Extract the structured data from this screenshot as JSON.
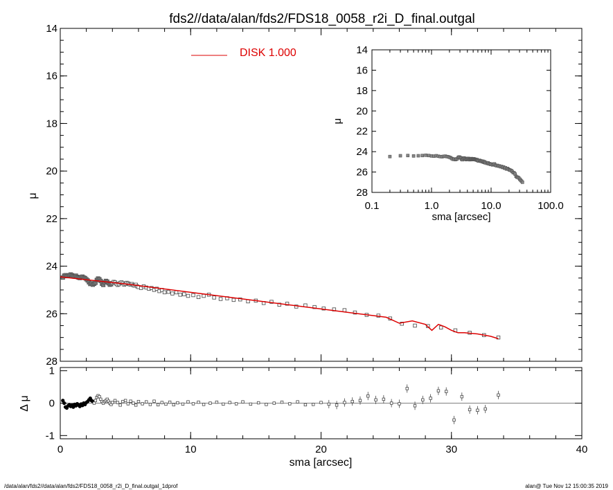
{
  "title": "fds2//data/alan/fds2/FDS18_0058_r2i_D_final.outgal",
  "footer_left": "/data/alan/fds2//data/alan/fds2/FDS18_0058_r2i_D_final.outgal_1dprof",
  "footer_right": "alan@  Tue Nov 12 15:00:35 2019",
  "legend": {
    "label": "DISK  1.000",
    "color": "#dd0000"
  },
  "main_panel": {
    "ylabel": "μ",
    "xlim": [
      0,
      40
    ],
    "ylim": [
      28,
      14
    ],
    "xticks": [
      0,
      10,
      20,
      30,
      40
    ],
    "yticks": [
      14,
      16,
      18,
      20,
      22,
      24,
      26,
      28
    ]
  },
  "residual_panel": {
    "xlabel": "sma [arcsec]",
    "ylabel": "Δ μ",
    "ylim": [
      -1.1,
      1.1
    ],
    "yticks": [
      -1,
      0,
      1
    ]
  },
  "inset_panel": {
    "xlabel": "sma [arcsec]",
    "ylabel": "μ",
    "xscale": "log",
    "xlim": [
      0.1,
      100
    ],
    "ylim": [
      28,
      14
    ],
    "xtick_values": [
      0.1,
      1,
      10,
      100
    ],
    "xtick_labels": [
      "0.1",
      "1.0",
      "10.0",
      "100.0"
    ],
    "yticks": [
      14,
      16,
      18,
      20,
      22,
      24,
      26,
      28
    ]
  },
  "chart_data": {
    "type": "scatter",
    "xlabel": "sma [arcsec]",
    "ylabel": "μ",
    "observed": {
      "x": [
        0.2,
        0.3,
        0.4,
        0.5,
        0.6,
        0.7,
        0.8,
        0.9,
        1.0,
        1.1,
        1.2,
        1.3,
        1.4,
        1.5,
        1.6,
        1.7,
        1.8,
        1.9,
        2.0,
        2.1,
        2.2,
        2.3,
        2.4,
        2.5,
        2.6,
        2.7,
        2.8,
        2.9,
        3.0,
        3.1,
        3.2,
        3.3,
        3.4,
        3.5,
        3.6,
        3.7,
        3.8,
        3.9,
        4.0,
        4.1,
        4.2,
        4.3,
        4.4,
        4.5,
        4.6,
        4.7,
        4.8,
        4.9,
        5.0,
        5.1,
        5.2,
        5.3,
        5.4,
        5.5,
        5.6,
        5.7,
        5.8,
        5.9,
        6.0,
        6.2,
        6.4,
        6.6,
        6.8,
        7.0,
        7.2,
        7.4,
        7.6,
        7.8,
        8.0,
        8.3,
        8.6,
        8.9,
        9.2,
        9.5,
        9.8,
        10.2,
        10.6,
        11.0,
        11.4,
        11.8,
        12.3,
        12.8,
        13.3,
        13.8,
        14.4,
        15.0,
        15.6,
        16.2,
        16.8,
        17.4,
        18.1,
        18.8,
        19.5,
        20.2,
        21.0,
        21.8,
        22.6,
        23.5,
        24.4,
        25.3,
        26.2,
        27.2,
        28.2,
        29.2,
        30.3,
        31.4,
        32.5,
        33.6
      ],
      "mu": [
        24.48,
        24.4,
        24.38,
        24.42,
        24.4,
        24.38,
        24.35,
        24.38,
        24.42,
        24.44,
        24.4,
        24.45,
        24.48,
        24.5,
        24.46,
        24.44,
        24.48,
        24.5,
        24.55,
        24.6,
        24.68,
        24.75,
        24.72,
        24.78,
        24.74,
        24.7,
        24.58,
        24.52,
        24.55,
        24.62,
        24.74,
        24.79,
        24.68,
        24.62,
        24.65,
        24.72,
        24.78,
        24.76,
        24.7,
        24.66,
        24.68,
        24.74,
        24.79,
        24.76,
        24.7,
        24.68,
        24.72,
        24.78,
        24.75,
        24.7,
        24.72,
        24.76,
        24.78,
        24.75,
        24.8,
        24.82,
        24.78,
        24.85,
        24.88,
        24.92,
        24.85,
        24.9,
        24.95,
        24.92,
        25.0,
        24.95,
        25.05,
        25.0,
        25.1,
        25.08,
        25.15,
        25.1,
        25.2,
        25.18,
        25.25,
        25.22,
        25.3,
        25.25,
        25.2,
        25.32,
        25.38,
        25.35,
        25.42,
        25.4,
        25.48,
        25.45,
        25.55,
        25.5,
        25.62,
        25.58,
        25.7,
        25.65,
        25.72,
        25.78,
        25.82,
        25.85,
        25.95,
        26.05,
        26.08,
        26.2,
        26.42,
        26.5,
        26.52,
        26.58,
        26.7,
        26.8,
        26.9,
        27.0
      ],
      "err": [
        0.02,
        0.02,
        0.02,
        0.02,
        0.02,
        0.02,
        0.02,
        0.02,
        0.02,
        0.02,
        0.02,
        0.02,
        0.02,
        0.02,
        0.02,
        0.02,
        0.02,
        0.02,
        0.02,
        0.02,
        0.02,
        0.02,
        0.02,
        0.02,
        0.02,
        0.02,
        0.02,
        0.02,
        0.02,
        0.02,
        0.02,
        0.02,
        0.02,
        0.02,
        0.02,
        0.02,
        0.02,
        0.02,
        0.02,
        0.02,
        0.02,
        0.02,
        0.02,
        0.02,
        0.02,
        0.02,
        0.02,
        0.02,
        0.02,
        0.02,
        0.02,
        0.02,
        0.02,
        0.02,
        0.02,
        0.02,
        0.02,
        0.02,
        0.02,
        0.02,
        0.02,
        0.02,
        0.02,
        0.02,
        0.02,
        0.02,
        0.02,
        0.02,
        0.02,
        0.02,
        0.02,
        0.02,
        0.02,
        0.02,
        0.02,
        0.02,
        0.02,
        0.02,
        0.02,
        0.02,
        0.02,
        0.02,
        0.02,
        0.02,
        0.02,
        0.02,
        0.02,
        0.02,
        0.02,
        0.02,
        0.02,
        0.02,
        0.02,
        0.02,
        0.02,
        0.02,
        0.02,
        0.02,
        0.02,
        0.02,
        0.02,
        0.02,
        0.02,
        0.02,
        0.04,
        0.04,
        0.05,
        0.06
      ]
    },
    "model": {
      "name": "DISK  1.000",
      "x": [
        0.0,
        5.0,
        10.0,
        15.0,
        20.0,
        25.0,
        26.0,
        27.0,
        28.0,
        28.5,
        29.0,
        29.5,
        30.0,
        30.5,
        31.0,
        32.0,
        33.0,
        33.6
      ],
      "mu": [
        24.45,
        24.75,
        25.1,
        25.45,
        25.8,
        26.15,
        26.4,
        26.3,
        26.45,
        26.7,
        26.45,
        26.55,
        26.7,
        26.8,
        26.8,
        26.85,
        26.95,
        27.05
      ]
    },
    "residuals": {
      "x": [
        0.2,
        0.3,
        0.4,
        0.5,
        0.6,
        0.7,
        0.8,
        0.9,
        1.0,
        1.1,
        1.2,
        1.3,
        1.4,
        1.5,
        1.6,
        1.7,
        1.8,
        1.9,
        2.0,
        2.1,
        2.2,
        2.3,
        2.4,
        2.5,
        2.6,
        2.7,
        2.8,
        2.9,
        3.0,
        3.1,
        3.2,
        3.3,
        3.4,
        3.5,
        3.6,
        3.7,
        3.8,
        3.9,
        4.0,
        4.2,
        4.4,
        4.6,
        4.8,
        5.0,
        5.2,
        5.4,
        5.6,
        5.8,
        6.0,
        6.3,
        6.6,
        6.9,
        7.2,
        7.5,
        7.8,
        8.1,
        8.4,
        8.7,
        9.0,
        9.4,
        9.8,
        10.2,
        10.6,
        11.0,
        11.5,
        12.0,
        12.5,
        13.0,
        13.5,
        14.0,
        14.6,
        15.2,
        15.8,
        16.4,
        17.0,
        17.6,
        18.2,
        18.8,
        19.4,
        20.0,
        20.6,
        21.2,
        21.8,
        22.4,
        23.0,
        23.6,
        24.2,
        24.8,
        25.4,
        26.0,
        26.6,
        27.2,
        27.8,
        28.4,
        29.0,
        29.6,
        30.2,
        30.8,
        31.4,
        32.0,
        32.6,
        33.6
      ],
      "d": [
        0.08,
        0.0,
        -0.12,
        -0.15,
        -0.08,
        -0.05,
        -0.1,
        -0.06,
        -0.12,
        -0.04,
        -0.08,
        -0.02,
        -0.06,
        -0.1,
        -0.03,
        -0.07,
        0.0,
        -0.04,
        0.02,
        0.05,
        0.1,
        0.15,
        0.08,
        0.05,
        0.0,
        0.08,
        0.18,
        0.23,
        0.2,
        0.12,
        0.05,
        0.0,
        0.05,
        0.08,
        0.12,
        0.06,
        0.0,
        -0.04,
        0.02,
        0.08,
        0.02,
        -0.06,
        0.05,
        0.08,
        -0.02,
        0.06,
        0.0,
        -0.06,
        0.05,
        -0.02,
        0.04,
        -0.04,
        0.06,
        -0.05,
        0.02,
        -0.03,
        0.03,
        -0.05,
        0.01,
        -0.03,
        0.04,
        -0.02,
        0.03,
        -0.04,
        0.0,
        0.03,
        -0.03,
        0.02,
        -0.02,
        0.04,
        -0.03,
        0.01,
        -0.04,
        0.0,
        0.03,
        -0.02,
        0.04,
        -0.05,
        -0.04,
        0.02,
        -0.03,
        -0.06,
        0.02,
        0.05,
        0.08,
        0.22,
        0.1,
        0.12,
        0.0,
        -0.02,
        0.45,
        -0.08,
        0.1,
        0.15,
        0.38,
        0.36,
        -0.52,
        0.2,
        -0.2,
        -0.22,
        -0.18,
        0.25
      ]
    }
  }
}
